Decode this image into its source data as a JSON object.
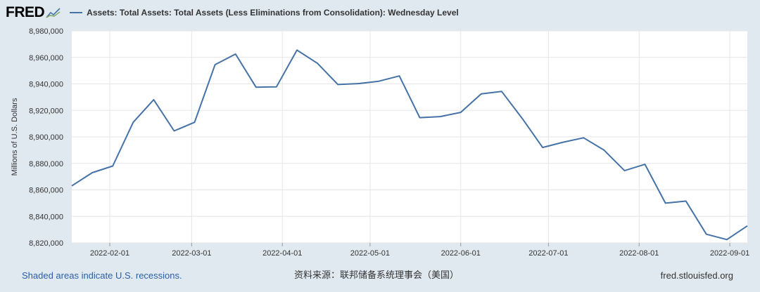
{
  "header": {
    "logo": "FRED",
    "legend": "Assets: Total Assets: Total Assets (Less Eliminations from Consolidation): Wednesday Level"
  },
  "colors": {
    "line": "#4572a7",
    "plot_bg": "#ffffff",
    "grid": "#e6e6e6",
    "page_bg": "#e1e9f0"
  },
  "chart_data": {
    "type": "line",
    "ylabel": "Millions of U.S. Dollars",
    "ylim": [
      8820000,
      8980000
    ],
    "yticks": [
      8820000,
      8840000,
      8860000,
      8880000,
      8900000,
      8920000,
      8940000,
      8960000,
      8980000
    ],
    "ytick_labels": [
      "8,820,000",
      "8,840,000",
      "8,860,000",
      "8,880,000",
      "8,900,000",
      "8,920,000",
      "8,940,000",
      "8,960,000",
      "8,980,000"
    ],
    "xlim": [
      "2022-01-19",
      "2022-09-07"
    ],
    "xticks": [
      "2022-02-01",
      "2022-03-01",
      "2022-04-01",
      "2022-05-01",
      "2022-06-01",
      "2022-07-01",
      "2022-08-01",
      "2022-09-01"
    ],
    "series": [
      {
        "name": "Assets: Total Assets: Total Assets (Less Eliminations from Consolidation): Wednesday Level",
        "x": [
          "2022-01-19",
          "2022-01-26",
          "2022-02-02",
          "2022-02-09",
          "2022-02-16",
          "2022-02-23",
          "2022-03-02",
          "2022-03-09",
          "2022-03-16",
          "2022-03-23",
          "2022-03-30",
          "2022-04-06",
          "2022-04-13",
          "2022-04-20",
          "2022-04-27",
          "2022-05-04",
          "2022-05-11",
          "2022-05-18",
          "2022-05-25",
          "2022-06-01",
          "2022-06-08",
          "2022-06-15",
          "2022-06-22",
          "2022-06-29",
          "2022-07-06",
          "2022-07-13",
          "2022-07-20",
          "2022-07-27",
          "2022-08-03",
          "2022-08-10",
          "2022-08-17",
          "2022-08-24",
          "2022-08-31",
          "2022-09-07"
        ],
        "values": [
          8863000,
          8873000,
          8878000,
          8911000,
          8928000,
          8904500,
          8911000,
          8954500,
          8962500,
          8937500,
          8937800,
          8965500,
          8955500,
          8939500,
          8940200,
          8942000,
          8946000,
          8914500,
          8915300,
          8918500,
          8932500,
          8934300,
          8914000,
          8892000,
          8896000,
          8899300,
          8890000,
          8874500,
          8879300,
          8850000,
          8851500,
          8826500,
          8822500,
          8832800
        ]
      }
    ]
  },
  "footer": {
    "left": "Shaded areas indicate U.S. recessions.",
    "middle": "资料来源：联邦储备系统理事会（美国）",
    "right": "fred.stlouisfed.org"
  }
}
